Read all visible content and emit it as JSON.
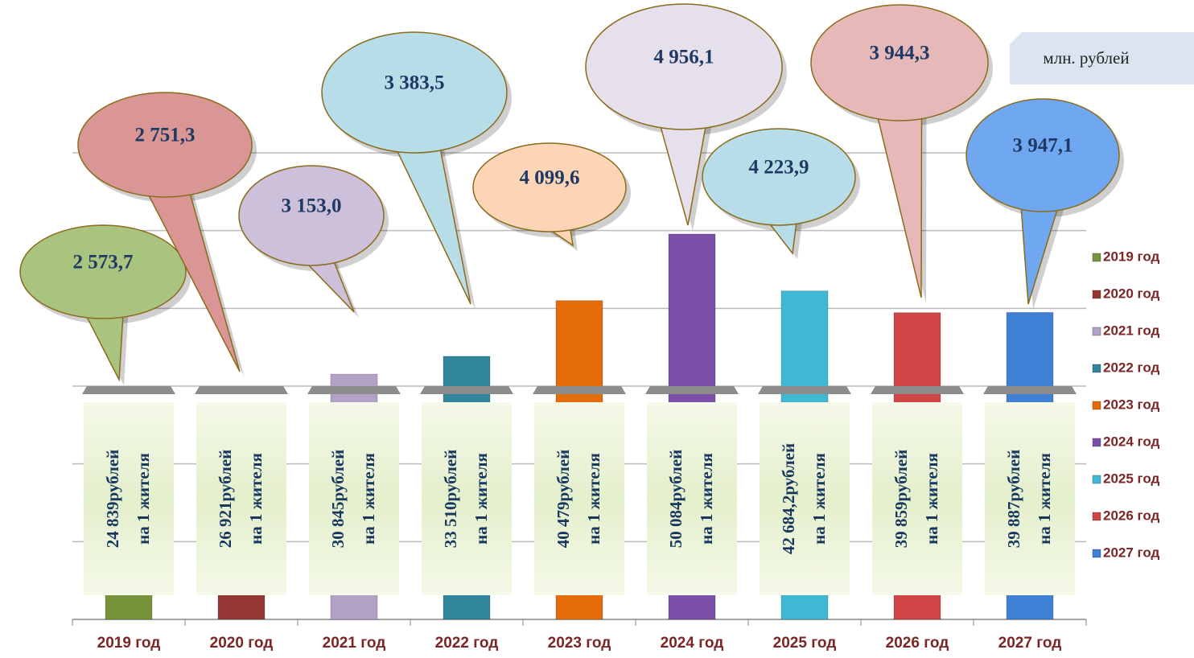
{
  "chart_data": {
    "type": "bar",
    "unit_label": "млн. рублей",
    "categories": [
      "2019 год",
      "2020 год",
      "2021 год",
      "2022 год",
      "2023 год",
      "2024 год",
      "2025 год",
      "2026 год",
      "2027 год"
    ],
    "values": [
      2573.7,
      2751.3,
      3153.0,
      3383.5,
      4099.6,
      4956.1,
      4223.9,
      3944.3,
      3947.1
    ],
    "value_labels": [
      "2 573,7",
      "2 751,3",
      "3 153,0",
      "3 383,5",
      "4 099,6",
      "4 956,1",
      "4 223,9",
      "3 944,3",
      "3 947,1"
    ],
    "colors": [
      "#77933c",
      "#953735",
      "#b3a2c7",
      "#31859c",
      "#e46c0a",
      "#7c4fa8",
      "#3fb8d4",
      "#d04545",
      "#3f7fd6"
    ],
    "bubble_colors": [
      "#a9c47f",
      "#d99694",
      "#ccc0da",
      "#b7dee8",
      "#fbd5b5",
      "#e6e0ec",
      "#b7dee8",
      "#e6b9b8",
      "#6fa8f0"
    ],
    "per_capita": [
      [
        "24 839рублей",
        "на 1 жителя"
      ],
      [
        "26 921рублей",
        "на 1 жителя"
      ],
      [
        "30 845рублей",
        "на 1 жителя"
      ],
      [
        "33 510рублей",
        "на 1 жителя"
      ],
      [
        "40 479рублей",
        "на 1 жителя"
      ],
      [
        "50 084рублей",
        "на 1 жителя"
      ],
      [
        "42 684,2рублей",
        "на 1 жителя"
      ],
      [
        "39 859рублей",
        "на 1 жителя"
      ],
      [
        "39 887рублей",
        "на 1 жителя"
      ]
    ],
    "ylim": [
      0,
      6000
    ],
    "yticks": [
      0,
      1000,
      2000,
      3000,
      4000,
      5000,
      6000
    ],
    "grid": true,
    "legend": "right"
  }
}
